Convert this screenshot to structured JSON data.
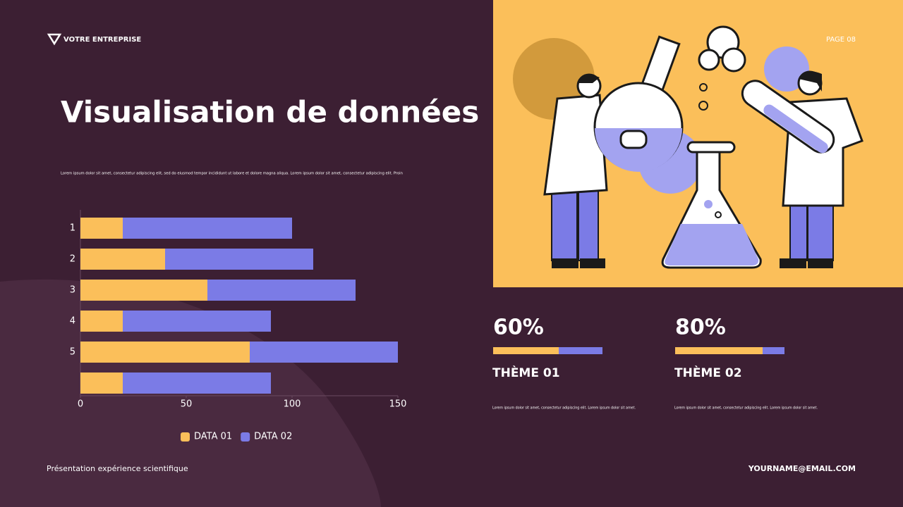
{
  "header": {
    "brand": "VOTRE ENTREPRISE",
    "page": "PAGE 08"
  },
  "title": "Visualisation de données",
  "intro": "Lorem ipsum dolor sit amet, consectetur adipiscing elit, sed do eiusmod tempor incididunt ut labore et dolore magna aliqua. Lorem ipsum dolor sit amet, consectetur adipiscing elit. Proin",
  "chart_data": {
    "type": "bar",
    "orientation": "horizontal",
    "stacked": true,
    "categories": [
      "1",
      "2",
      "3",
      "4",
      "5",
      null
    ],
    "series": [
      {
        "name": "DATA 01",
        "color": "#fbbf5a",
        "values": [
          20,
          40,
          60,
          20,
          80,
          20
        ]
      },
      {
        "name": "DATA 02",
        "color": "#7b7be6",
        "values": [
          80,
          70,
          70,
          70,
          70,
          70
        ]
      }
    ],
    "xlim": [
      0,
      150
    ],
    "xticks": [
      0,
      50,
      100,
      150
    ],
    "legend": "bottom"
  },
  "stats": [
    {
      "value": 60,
      "label": "60%",
      "title": "THÈME 01",
      "text": "Lorem ipsum dolor sit amet, consectetur adipiscing elit. Lorem ipsum dolor sit amet."
    },
    {
      "value": 80,
      "label": "80%",
      "title": "THÈME 02",
      "text": "Lorem ipsum dolor sit amet, consectetur adipiscing elit. Lorem ipsum dolor sit amet."
    }
  ],
  "footer": {
    "left": "Présentation expérience scientifique",
    "right": "YOURNAME@EMAIL.COM"
  }
}
